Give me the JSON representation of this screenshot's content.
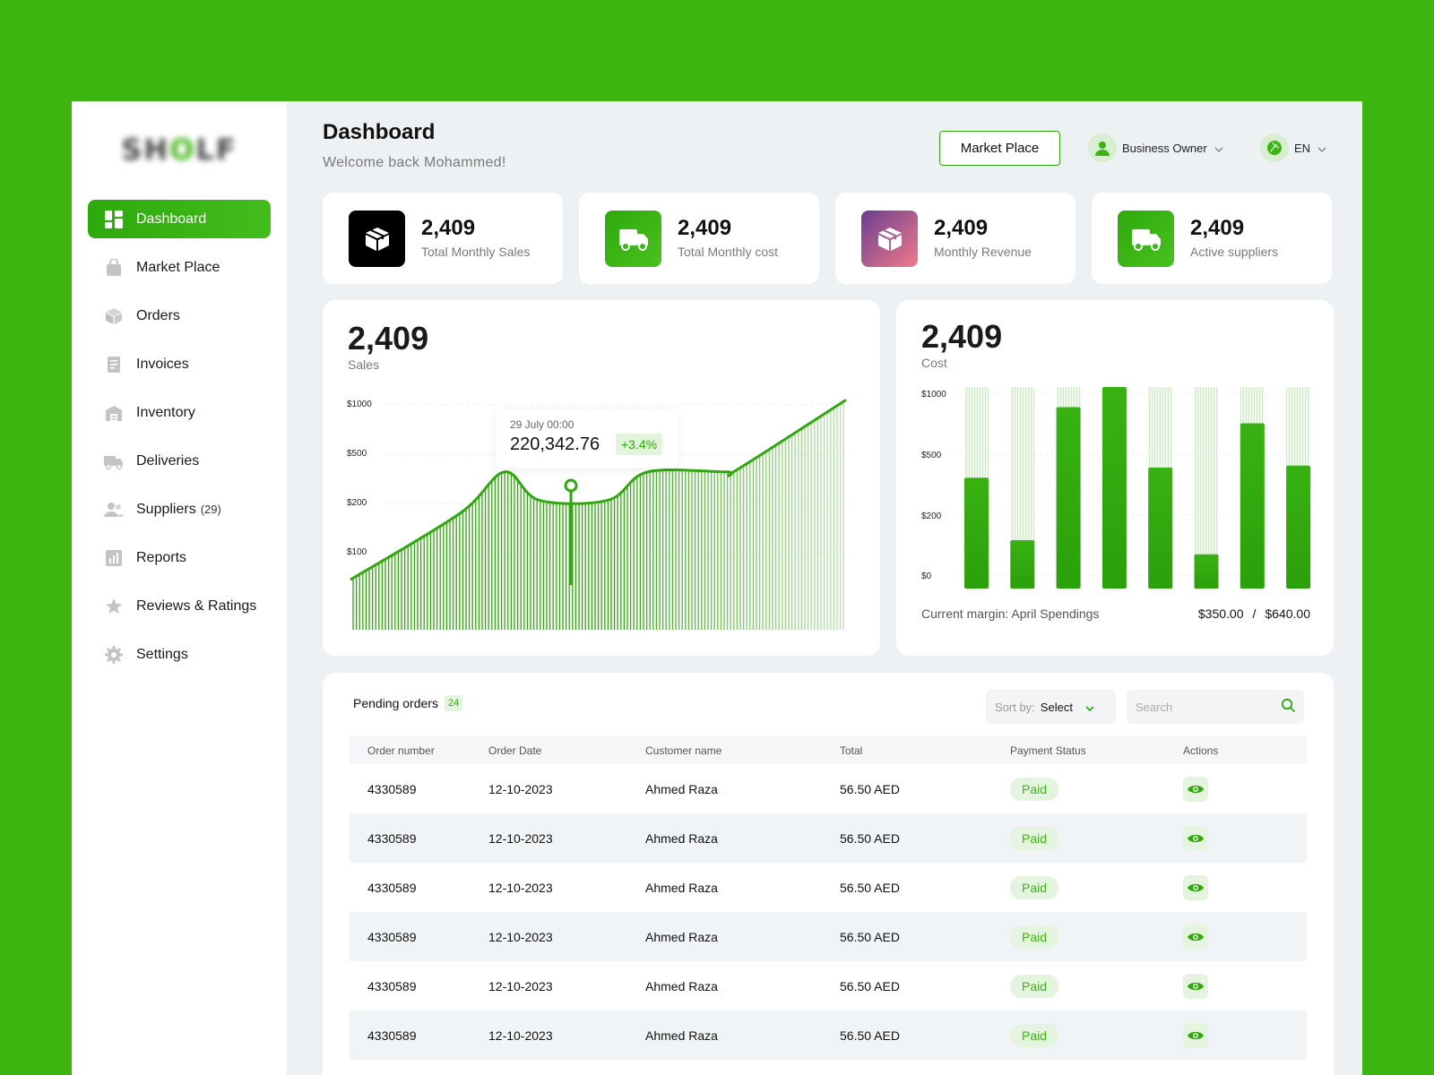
{
  "app": {
    "logo_text": "SHOLF"
  },
  "sidebar": {
    "items": [
      {
        "label": "Dashboard",
        "icon": "dashboard-icon",
        "active": true
      },
      {
        "label": "Market Place",
        "icon": "bag-icon"
      },
      {
        "label": "Orders",
        "icon": "box-icon"
      },
      {
        "label": "Invoices",
        "icon": "invoice-icon"
      },
      {
        "label": "Inventory",
        "icon": "warehouse-icon"
      },
      {
        "label": "Deliveries",
        "icon": "truck-icon"
      },
      {
        "label": "Suppliers",
        "icon": "users-icon",
        "count": "(29)"
      },
      {
        "label": "Reports",
        "icon": "bar-chart-icon"
      },
      {
        "label": "Reviews & Ratings",
        "icon": "star-icon"
      },
      {
        "label": "Settings",
        "icon": "gear-icon"
      }
    ]
  },
  "header": {
    "title": "Dashboard",
    "subtitle": "Welcome back Mohammed!",
    "marketplace_button": "Market Place",
    "user_role": "Business Owner",
    "language": "EN"
  },
  "stats": [
    {
      "value": "2,409",
      "label": "Total Monthly Sales",
      "icon": "box-icon",
      "color": "#000000"
    },
    {
      "value": "2,409",
      "label": "Total Monthly cost",
      "icon": "truck-icon",
      "color": "#3cb511"
    },
    {
      "value": "2,409",
      "label": "Monthly Revenue",
      "icon": "box-icon",
      "color": "#8a5a8c"
    },
    {
      "value": "2,409",
      "label": "Active suppliers",
      "icon": "truck-icon",
      "color": "#3cb511"
    }
  ],
  "sales_card": {
    "value": "2,409",
    "label": "Sales"
  },
  "cost_card": {
    "value": "2,409",
    "label": "Cost",
    "margin_label": "Current margin: April Spendings",
    "margin_current": "$350.00",
    "margin_separator": "/",
    "margin_total": "$640.00"
  },
  "tooltip": {
    "date": "29 July 00:00",
    "value": "220,342.76",
    "change": "+3.4%"
  },
  "chart_data": [
    {
      "type": "area",
      "yticks": [
        "$1000",
        "$500",
        "$200",
        "$100"
      ],
      "scale": "non-linear (labeled ticks)",
      "series_shape": [
        0.05,
        0.4,
        0.62,
        0.47,
        0.47,
        0.62,
        0.62,
        0.63,
        1.0
      ],
      "highlight": {
        "date": "29 July 00:00",
        "value": 220342.76,
        "change": "+3.4%"
      },
      "grid": true,
      "colors": {
        "line": "#2ea90c"
      }
    },
    {
      "type": "bar",
      "yticks": [
        "$1000",
        "$500",
        "$200",
        "$0"
      ],
      "scale": "non-linear (labeled ticks)",
      "bars_fraction_of_track": [
        0.55,
        0.24,
        0.9,
        1.0,
        0.6,
        0.17,
        0.82,
        0.61
      ],
      "grid": true,
      "colors": {
        "bar": "#3cb511",
        "track": "#e6f4e0"
      }
    }
  ],
  "orders": {
    "title": "Pending orders",
    "count": "24",
    "sort_label": "Sort by:",
    "sort_value": "Select",
    "search_placeholder": "Search",
    "columns": [
      "Order number",
      "Order Date",
      "Customer name",
      "Total",
      "Payment Status",
      "Actions"
    ],
    "rows": [
      {
        "order": "4330589",
        "date": "12-10-2023",
        "customer": "Ahmed Raza",
        "total": "56.50 AED",
        "status": "Paid"
      },
      {
        "order": "4330589",
        "date": "12-10-2023",
        "customer": "Ahmed Raza",
        "total": "56.50 AED",
        "status": "Paid"
      },
      {
        "order": "4330589",
        "date": "12-10-2023",
        "customer": "Ahmed Raza",
        "total": "56.50 AED",
        "status": "Paid"
      },
      {
        "order": "4330589",
        "date": "12-10-2023",
        "customer": "Ahmed Raza",
        "total": "56.50 AED",
        "status": "Paid"
      },
      {
        "order": "4330589",
        "date": "12-10-2023",
        "customer": "Ahmed Raza",
        "total": "56.50 AED",
        "status": "Paid"
      },
      {
        "order": "4330589",
        "date": "12-10-2023",
        "customer": "Ahmed Raza",
        "total": "56.50 AED",
        "status": "Paid"
      }
    ],
    "action_icon": "eye-icon"
  },
  "colors": {
    "brand": "#3cb511",
    "background": "#eef1f4"
  }
}
